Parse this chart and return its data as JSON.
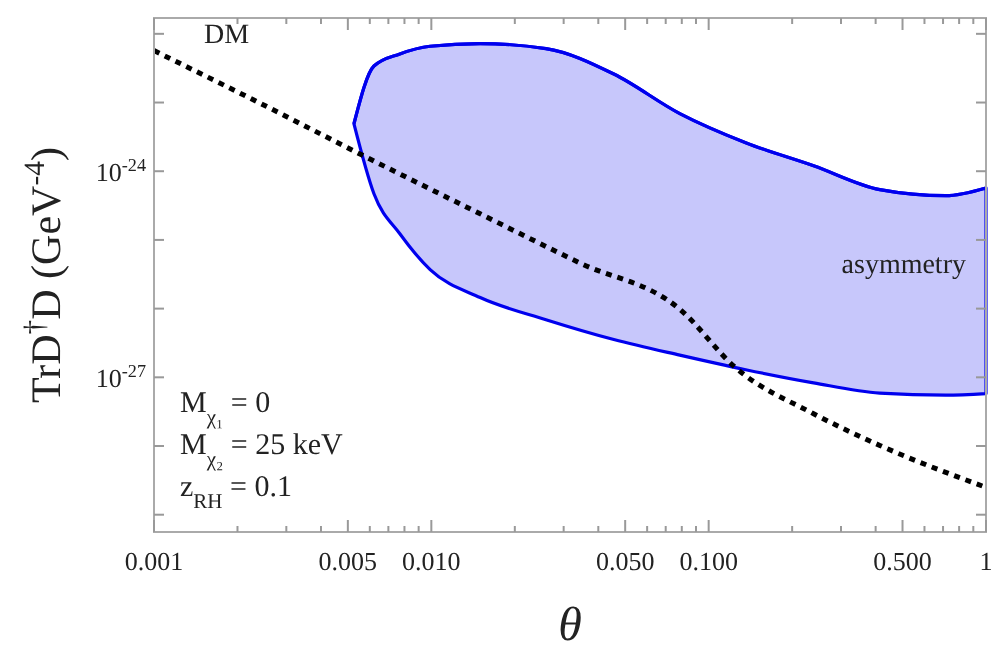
{
  "chart_data": {
    "type": "line",
    "xlabel": "θ",
    "ylabel": "TrD$^{†}$D  (GeV$^{-4}$)",
    "log": "xy",
    "grid": false,
    "xlim": [
      0.001,
      1
    ],
    "ylim": [
      5.6e-30,
      1.7e-22
    ],
    "xticks": [
      0.001,
      {
        "value": 0.002,
        "label": null
      },
      {
        "value": 0.003,
        "label": null
      },
      {
        "value": 0.004,
        "label": null
      },
      0.005,
      {
        "value": 0.006,
        "label": null
      },
      {
        "value": 0.007,
        "label": null
      },
      {
        "value": 0.008,
        "label": null
      },
      {
        "value": 0.009,
        "label": null
      },
      {
        "value": 0.01,
        "label": "0.010"
      },
      {
        "value": 0.02,
        "label": null
      },
      {
        "value": 0.03,
        "label": null
      },
      {
        "value": 0.04,
        "label": null
      },
      {
        "value": 0.05,
        "label": "0.050"
      },
      {
        "value": 0.06,
        "label": null
      },
      {
        "value": 0.07,
        "label": null
      },
      {
        "value": 0.08,
        "label": null
      },
      {
        "value": 0.09,
        "label": null
      },
      {
        "value": 0.1,
        "label": "0.100"
      },
      {
        "value": 0.2,
        "label": null
      },
      {
        "value": 0.3,
        "label": null
      },
      {
        "value": 0.4,
        "label": null
      },
      {
        "value": 0.5,
        "label": "0.500"
      },
      {
        "value": 0.6,
        "label": null
      },
      {
        "value": 0.7,
        "label": null
      },
      {
        "value": 0.8,
        "label": null
      },
      {
        "value": 0.9,
        "label": null
      },
      1
    ],
    "yticks": [
      {
        "value": 1e-29,
        "label": null
      },
      {
        "value": 1e-28,
        "label": null
      },
      {
        "value": 1e-27,
        "label": "10$^{-27}$"
      },
      {
        "value": 1e-26,
        "label": null
      },
      {
        "value": 1e-25,
        "label": null
      },
      {
        "value": 1e-24,
        "label": "10$^{-24}$"
      },
      {
        "value": 1e-23,
        "label": null
      },
      {
        "value": 1e-22,
        "label": null
      }
    ],
    "series": [
      {
        "name": "DM",
        "line_style": "dotted",
        "color": "#000000",
        "x": [
          0.001,
          0.00241,
          0.00553,
          0.015,
          0.0344,
          0.0787,
          0.125,
          0.239,
          0.414,
          1
        ],
        "values": [
          5.7e-23,
          9.8e-24,
          1.78e-24,
          2.4e-25,
          4.6e-26,
          9.8e-27,
          1.38e-27,
          2.95e-28,
          1.02e-28,
          2.5e-29
        ]
      },
      {
        "name": "asymmetry",
        "color": "#0000ee",
        "x": [
          0.00526,
          0.00621,
          0.0077,
          0.0099,
          0.015,
          0.0259,
          0.0455,
          0.0787,
          0.136,
          0.239,
          0.414,
          0.716,
          1
        ],
        "values": [
          4.9e-24,
          3.4e-23,
          5.1e-23,
          6.6e-23,
          7.2e-23,
          6.1e-23,
          2.6e-23,
          6.9e-24,
          2.6e-24,
          1.2e-24,
          5.4e-25,
          4.4e-25,
          5.7e-25
        ],
        "upper": [
          4.9e-24,
          3.4e-23,
          5.1e-23,
          6.6e-23,
          7.2e-23,
          6.1e-23,
          2.6e-23,
          6.9e-24,
          2.6e-24,
          1.2e-24,
          5.4e-25,
          4.4e-25,
          5.7e-25
        ],
        "lower": [
          4.9e-24,
          4.7e-25,
          1.23e-25,
          3.7e-26,
          1.45e-26,
          6.9e-27,
          3.55e-27,
          2.1e-27,
          1.29e-27,
          8.3e-28,
          5.9e-28,
          5.5e-28,
          5.8e-28
        ]
      }
    ],
    "annotations": [
      "M$_{χ₁}$ = 0",
      "M$_{χ₂}$ = 25 keV",
      "z$_{RH}$ = 0.1"
    ]
  }
}
